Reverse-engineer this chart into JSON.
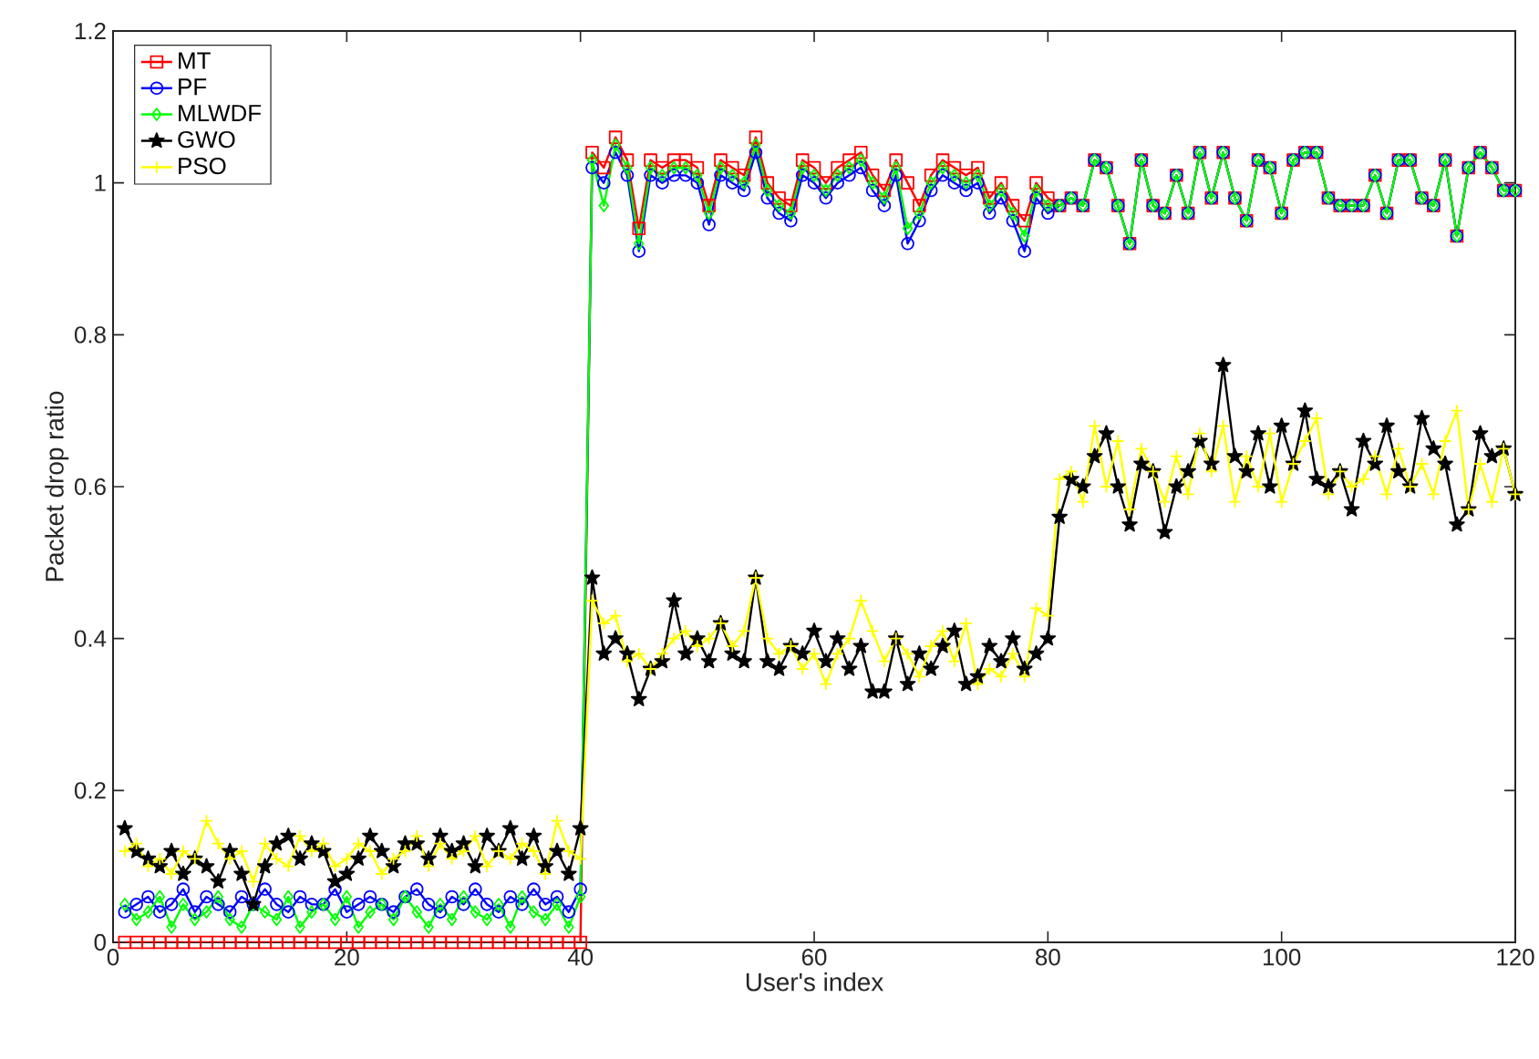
{
  "chart_data": {
    "type": "line",
    "xlabel": "User's index",
    "ylabel": "Packet drop ratio",
    "xlim": [
      0,
      120
    ],
    "ylim": [
      0,
      1.2
    ],
    "xticks": [
      0,
      20,
      40,
      60,
      80,
      100,
      120
    ],
    "yticks": [
      0,
      0.2,
      0.4,
      0.6,
      0.8,
      1,
      1.2
    ],
    "grid": false,
    "legend": "top left",
    "line_style": "solid",
    "x": [
      1,
      2,
      3,
      4,
      5,
      6,
      7,
      8,
      9,
      10,
      11,
      12,
      13,
      14,
      15,
      16,
      17,
      18,
      19,
      20,
      21,
      22,
      23,
      24,
      25,
      26,
      27,
      28,
      29,
      30,
      31,
      32,
      33,
      34,
      35,
      36,
      37,
      38,
      39,
      40,
      41,
      42,
      43,
      44,
      45,
      46,
      47,
      48,
      49,
      50,
      51,
      52,
      53,
      54,
      55,
      56,
      57,
      58,
      59,
      60,
      61,
      62,
      63,
      64,
      65,
      66,
      67,
      68,
      69,
      70,
      71,
      72,
      73,
      74,
      75,
      76,
      77,
      78,
      79,
      80,
      81,
      82,
      83,
      84,
      85,
      86,
      87,
      88,
      89,
      90,
      91,
      92,
      93,
      94,
      95,
      96,
      97,
      98,
      99,
      100,
      101,
      102,
      103,
      104,
      105,
      106,
      107,
      108,
      109,
      110,
      111,
      112,
      113,
      114,
      115,
      116,
      117,
      118,
      119,
      120
    ],
    "series": [
      {
        "name": "MT",
        "color": "#ff0000",
        "marker": "square",
        "values": [
          0,
          0,
          0,
          0,
          0,
          0,
          0,
          0,
          0,
          0,
          0,
          0,
          0,
          0,
          0,
          0,
          0,
          0,
          0,
          0,
          0,
          0,
          0,
          0,
          0,
          0,
          0,
          0,
          0,
          0,
          0,
          0,
          0,
          0,
          0,
          0,
          0,
          0,
          0,
          0,
          1.04,
          1.02,
          1.06,
          1.03,
          0.94,
          1.03,
          1.02,
          1.03,
          1.03,
          1.02,
          0.97,
          1.03,
          1.02,
          1.01,
          1.06,
          1.0,
          0.98,
          0.97,
          1.03,
          1.02,
          1.0,
          1.02,
          1.03,
          1.04,
          1.01,
          0.99,
          1.03,
          1.0,
          0.97,
          1.01,
          1.03,
          1.02,
          1.01,
          1.02,
          0.98,
          1.0,
          0.97,
          0.95,
          1.0,
          0.98,
          0.97,
          0.98,
          0.97,
          1.03,
          1.02,
          0.97,
          0.92,
          1.03,
          0.97,
          0.96,
          1.01,
          0.96,
          1.04,
          0.98,
          1.04,
          0.98,
          0.95,
          1.03,
          1.02,
          0.96,
          1.03,
          1.04,
          1.04,
          0.98,
          0.97,
          0.97,
          0.97,
          1.01,
          0.96,
          1.03,
          1.03,
          0.98,
          0.97,
          1.03,
          0.93,
          1.02,
          1.04,
          1.02,
          0.99,
          0.99
        ]
      },
      {
        "name": "PF",
        "color": "#0000ff",
        "marker": "circle",
        "values": [
          0.04,
          0.05,
          0.06,
          0.04,
          0.05,
          0.07,
          0.04,
          0.06,
          0.05,
          0.04,
          0.06,
          0.05,
          0.07,
          0.05,
          0.04,
          0.06,
          0.05,
          0.05,
          0.07,
          0.04,
          0.05,
          0.06,
          0.05,
          0.04,
          0.06,
          0.07,
          0.05,
          0.04,
          0.06,
          0.05,
          0.07,
          0.05,
          0.04,
          0.06,
          0.05,
          0.07,
          0.05,
          0.06,
          0.04,
          0.07,
          1.02,
          1.0,
          1.04,
          1.01,
          0.91,
          1.01,
          1.0,
          1.01,
          1.01,
          1.0,
          0.945,
          1.01,
          1.0,
          0.99,
          1.04,
          0.98,
          0.96,
          0.95,
          1.01,
          1.0,
          0.98,
          1.0,
          1.01,
          1.02,
          0.99,
          0.97,
          1.01,
          0.92,
          0.95,
          0.99,
          1.01,
          1.0,
          0.99,
          1.0,
          0.96,
          0.98,
          0.95,
          0.91,
          0.98,
          0.96,
          0.97,
          0.98,
          0.97,
          1.03,
          1.02,
          0.97,
          0.92,
          1.03,
          0.97,
          0.96,
          1.01,
          0.96,
          1.04,
          0.98,
          1.04,
          0.98,
          0.95,
          1.03,
          1.02,
          0.96,
          1.03,
          1.04,
          1.04,
          0.98,
          0.97,
          0.97,
          0.97,
          1.01,
          0.96,
          1.03,
          1.03,
          0.98,
          0.97,
          1.03,
          0.93,
          1.02,
          1.04,
          1.02,
          0.99,
          0.99
        ]
      },
      {
        "name": "MLWDF",
        "color": "#00ff00",
        "marker": "diamond",
        "values": [
          0.05,
          0.03,
          0.04,
          0.06,
          0.02,
          0.05,
          0.03,
          0.04,
          0.06,
          0.03,
          0.02,
          0.05,
          0.04,
          0.03,
          0.06,
          0.02,
          0.04,
          0.05,
          0.03,
          0.06,
          0.02,
          0.04,
          0.05,
          0.03,
          0.06,
          0.04,
          0.02,
          0.05,
          0.03,
          0.06,
          0.04,
          0.03,
          0.05,
          0.02,
          0.06,
          0.04,
          0.03,
          0.05,
          0.02,
          0.06,
          1.03,
          0.97,
          1.05,
          1.02,
          0.92,
          1.02,
          1.01,
          1.02,
          1.02,
          1.01,
          0.96,
          1.02,
          1.01,
          1.0,
          1.05,
          0.99,
          0.97,
          0.96,
          1.02,
          1.01,
          0.99,
          1.01,
          1.02,
          1.03,
          1.0,
          0.98,
          1.02,
          0.94,
          0.96,
          1.0,
          1.02,
          1.01,
          1.0,
          1.01,
          0.97,
          0.99,
          0.96,
          0.93,
          0.99,
          0.97,
          0.97,
          0.98,
          0.97,
          1.03,
          1.02,
          0.97,
          0.92,
          1.03,
          0.97,
          0.96,
          1.01,
          0.96,
          1.04,
          0.98,
          1.04,
          0.98,
          0.95,
          1.03,
          1.02,
          0.96,
          1.03,
          1.04,
          1.04,
          0.98,
          0.97,
          0.97,
          0.97,
          1.01,
          0.96,
          1.03,
          1.03,
          0.98,
          0.97,
          1.03,
          0.93,
          1.02,
          1.04,
          1.02,
          0.99,
          0.99
        ]
      },
      {
        "name": "GWO",
        "color": "#000000",
        "marker": "star",
        "values": [
          0.15,
          0.12,
          0.11,
          0.1,
          0.12,
          0.09,
          0.11,
          0.1,
          0.08,
          0.12,
          0.09,
          0.05,
          0.1,
          0.13,
          0.14,
          0.11,
          0.13,
          0.12,
          0.08,
          0.09,
          0.11,
          0.14,
          0.12,
          0.1,
          0.13,
          0.13,
          0.11,
          0.14,
          0.12,
          0.13,
          0.1,
          0.14,
          0.12,
          0.15,
          0.11,
          0.14,
          0.1,
          0.12,
          0.09,
          0.15,
          0.48,
          0.38,
          0.4,
          0.38,
          0.32,
          0.36,
          0.37,
          0.45,
          0.38,
          0.4,
          0.37,
          0.42,
          0.38,
          0.37,
          0.48,
          0.37,
          0.36,
          0.39,
          0.38,
          0.41,
          0.37,
          0.4,
          0.36,
          0.39,
          0.33,
          0.33,
          0.4,
          0.34,
          0.38,
          0.36,
          0.39,
          0.41,
          0.34,
          0.35,
          0.39,
          0.37,
          0.4,
          0.36,
          0.38,
          0.4,
          0.56,
          0.61,
          0.6,
          0.64,
          0.67,
          0.6,
          0.55,
          0.63,
          0.62,
          0.54,
          0.6,
          0.62,
          0.66,
          0.63,
          0.76,
          0.64,
          0.62,
          0.67,
          0.6,
          0.68,
          0.63,
          0.7,
          0.61,
          0.6,
          0.62,
          0.57,
          0.66,
          0.63,
          0.68,
          0.62,
          0.6,
          0.69,
          0.65,
          0.63,
          0.55,
          0.57,
          0.67,
          0.64,
          0.65,
          0.59
        ]
      },
      {
        "name": "PSO",
        "color": "#ffff00",
        "marker": "cross",
        "values": [
          0.12,
          0.13,
          0.1,
          0.11,
          0.09,
          0.12,
          0.11,
          0.16,
          0.13,
          0.11,
          0.12,
          0.08,
          0.13,
          0.11,
          0.1,
          0.14,
          0.12,
          0.13,
          0.1,
          0.11,
          0.13,
          0.12,
          0.09,
          0.11,
          0.12,
          0.14,
          0.1,
          0.13,
          0.11,
          0.12,
          0.14,
          0.1,
          0.12,
          0.11,
          0.13,
          0.12,
          0.09,
          0.16,
          0.12,
          0.11,
          0.45,
          0.42,
          0.43,
          0.37,
          0.38,
          0.36,
          0.38,
          0.4,
          0.41,
          0.39,
          0.4,
          0.42,
          0.39,
          0.41,
          0.48,
          0.4,
          0.38,
          0.39,
          0.36,
          0.38,
          0.34,
          0.38,
          0.4,
          0.45,
          0.41,
          0.37,
          0.4,
          0.38,
          0.35,
          0.39,
          0.41,
          0.37,
          0.42,
          0.34,
          0.36,
          0.35,
          0.38,
          0.35,
          0.44,
          0.43,
          0.61,
          0.62,
          0.58,
          0.68,
          0.6,
          0.66,
          0.57,
          0.65,
          0.62,
          0.58,
          0.64,
          0.59,
          0.67,
          0.62,
          0.68,
          0.58,
          0.64,
          0.6,
          0.67,
          0.58,
          0.63,
          0.66,
          0.69,
          0.59,
          0.62,
          0.6,
          0.61,
          0.64,
          0.59,
          0.65,
          0.6,
          0.63,
          0.59,
          0.66,
          0.7,
          0.57,
          0.63,
          0.58,
          0.65,
          0.59
        ]
      }
    ]
  }
}
